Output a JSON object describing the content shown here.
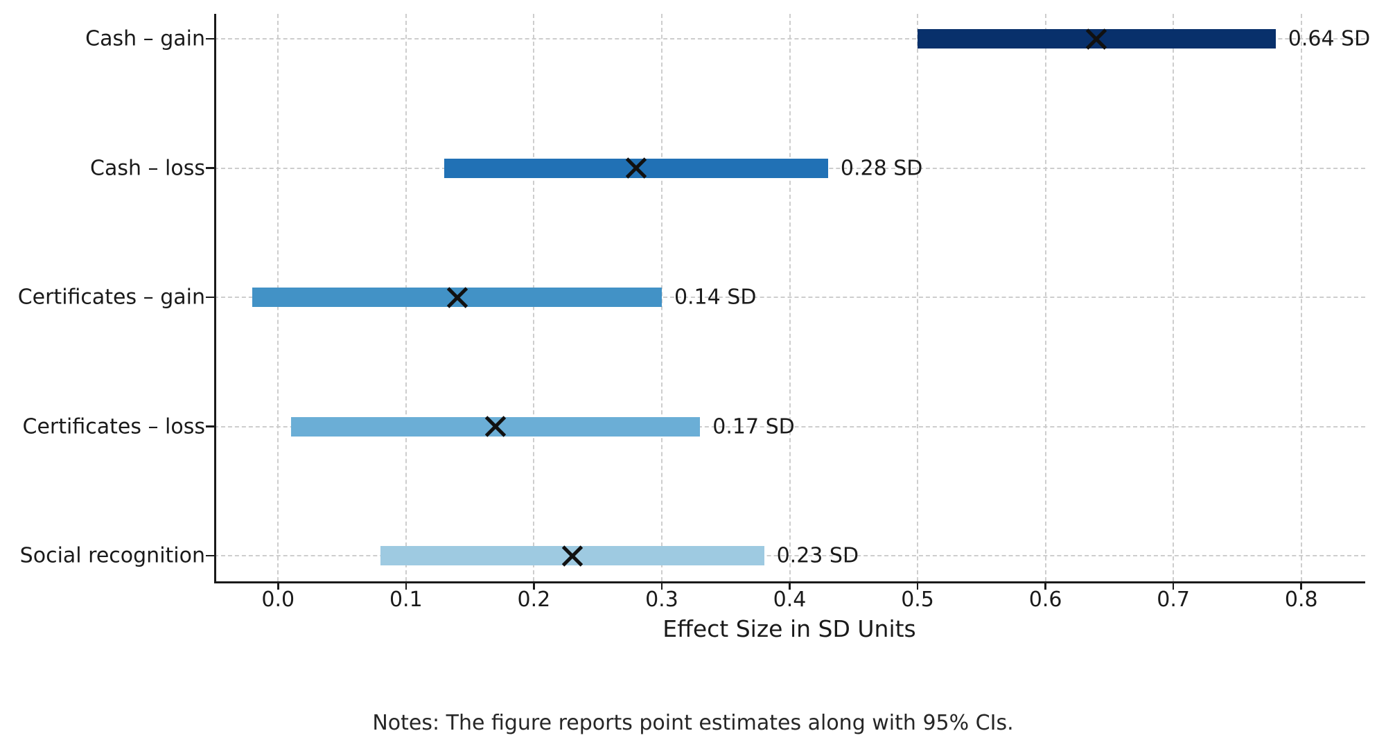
{
  "chart_data": {
    "type": "bar",
    "orientation": "horizontal",
    "title": "",
    "xlabel": "Effect Size in SD Units",
    "note": "Notes: The figure reports point estimates along with 95% CIs.",
    "ci_level": "95%",
    "marker": "x",
    "grid": true,
    "legend_position": "none",
    "xlim": [
      -0.05,
      0.85
    ],
    "x_ticks": [
      0.0,
      0.1,
      0.2,
      0.3,
      0.4,
      0.5,
      0.6,
      0.7,
      0.8
    ],
    "x_tick_labels": [
      "0.0",
      "0.1",
      "0.2",
      "0.3",
      "0.4",
      "0.5",
      "0.6",
      "0.7",
      "0.8"
    ],
    "rows": [
      {
        "label": "Cash – gain",
        "estimate": 0.64,
        "ci_low": 0.5,
        "ci_high": 0.78,
        "value_label": "0.64 SD",
        "color": "#08306b"
      },
      {
        "label": "Cash – loss",
        "estimate": 0.28,
        "ci_low": 0.13,
        "ci_high": 0.43,
        "value_label": "0.28 SD",
        "color": "#2171b5"
      },
      {
        "label": "Certificates – gain",
        "estimate": 0.14,
        "ci_low": -0.02,
        "ci_high": 0.3,
        "value_label": "0.14 SD",
        "color": "#4292c6"
      },
      {
        "label": "Certificates – loss",
        "estimate": 0.17,
        "ci_low": 0.01,
        "ci_high": 0.33,
        "value_label": "0.17 SD",
        "color": "#6baed6"
      },
      {
        "label": "Social recognition",
        "estimate": 0.23,
        "ci_low": 0.08,
        "ci_high": 0.38,
        "value_label": "0.23 SD",
        "color": "#9ecae1"
      }
    ],
    "colors": {
      "spine": "#1a1a1a",
      "grid": "#cdcdcd",
      "marker": "#111111",
      "text": "#1a1a1a"
    }
  }
}
